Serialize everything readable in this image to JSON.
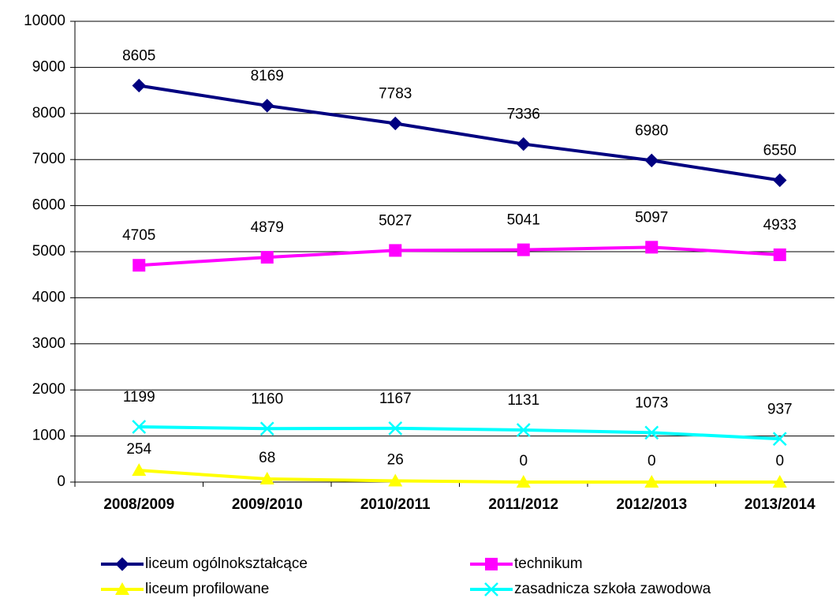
{
  "chart_data": {
    "type": "line",
    "categories": [
      "2008/2009",
      "2009/2010",
      "2010/2011",
      "2011/2012",
      "2012/2013",
      "2013/2014"
    ],
    "series": [
      {
        "name": "liceum ogólnokształcące",
        "color": "#000080",
        "marker": "diamond",
        "values": [
          8605,
          8169,
          7783,
          7336,
          6980,
          6550
        ]
      },
      {
        "name": "technikum",
        "color": "#ff00ff",
        "marker": "square",
        "values": [
          4705,
          4879,
          5027,
          5041,
          5097,
          4933
        ]
      },
      {
        "name": "liceum profilowane",
        "color": "#ffff00",
        "marker": "triangle",
        "values": [
          254,
          68,
          26,
          0,
          0,
          0
        ]
      },
      {
        "name": "zasadnicza szkoła zawodowa",
        "color": "#00ffff",
        "marker": "x",
        "values": [
          1199,
          1160,
          1167,
          1131,
          1073,
          937
        ]
      }
    ],
    "ylim": [
      0,
      10000
    ],
    "yticks": [
      0,
      1000,
      2000,
      3000,
      4000,
      5000,
      6000,
      7000,
      8000,
      9000,
      10000
    ],
    "grid": true,
    "legend": "bottom"
  }
}
